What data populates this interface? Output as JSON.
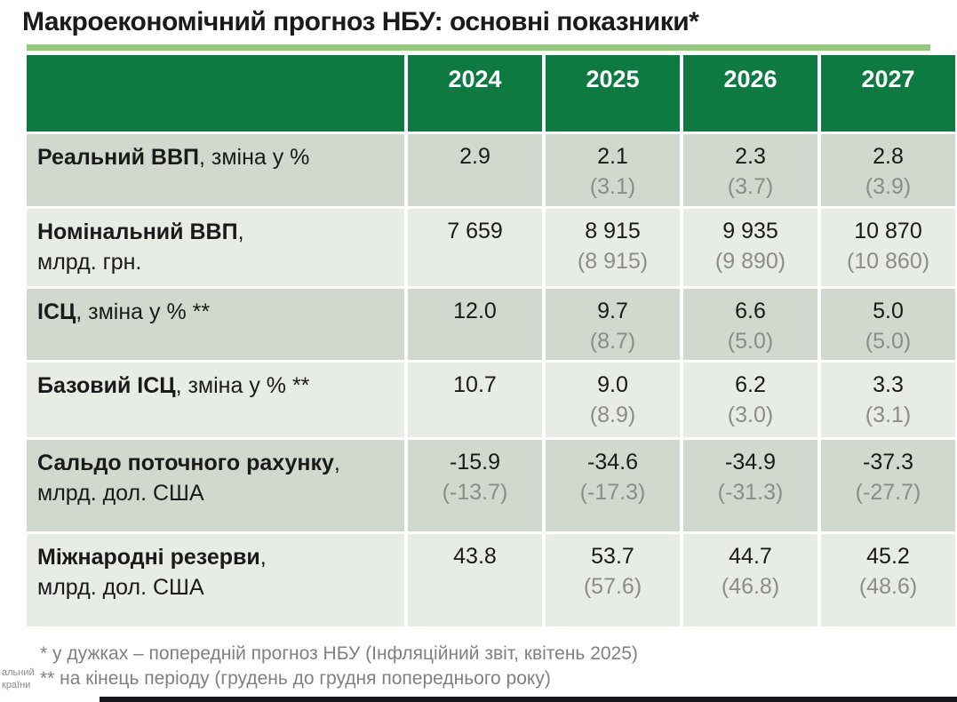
{
  "title": "Макроекономічний прогноз НБУ: основні показники*",
  "colors": {
    "header_green": "#0e7a41",
    "accent_underline_green": "#92c97e",
    "row_shade_dark": "#d1d9ce",
    "row_shade_light": "#e7ece4",
    "prev_value_gray": "#8c8c8c",
    "footnote_gray": "#808080"
  },
  "table": {
    "years": [
      "2024",
      "2025",
      "2026",
      "2027"
    ],
    "rows": [
      {
        "label_bold": "Реальний ВВП",
        "label_rest": ", зміна у %",
        "label_line2": "",
        "values": [
          {
            "v": "2.9",
            "p": ""
          },
          {
            "v": "2.1",
            "p": "(3.1)"
          },
          {
            "v": "2.3",
            "p": "(3.7)"
          },
          {
            "v": "2.8",
            "p": "(3.9)"
          }
        ]
      },
      {
        "label_bold": "Номінальний ВВП",
        "label_rest": ",",
        "label_line2": "млрд. грн.",
        "values": [
          {
            "v": "7 659",
            "p": ""
          },
          {
            "v": "8 915",
            "p": "(8 915)"
          },
          {
            "v": "9 935",
            "p": "(9 890)"
          },
          {
            "v": "10 870",
            "p": "(10 860)"
          }
        ]
      },
      {
        "label_bold": "ІСЦ",
        "label_rest": ", зміна у % **",
        "label_line2": "",
        "values": [
          {
            "v": "12.0",
            "p": ""
          },
          {
            "v": "9.7",
            "p": "(8.7)"
          },
          {
            "v": "6.6",
            "p": "(5.0)"
          },
          {
            "v": "5.0",
            "p": "(5.0)"
          }
        ]
      },
      {
        "label_bold": "Базовий ІСЦ",
        "label_rest": ", зміна у % **",
        "label_line2": "",
        "values": [
          {
            "v": "10.7",
            "p": ""
          },
          {
            "v": "9.0",
            "p": "(8.9)"
          },
          {
            "v": "6.2",
            "p": "(3.0)"
          },
          {
            "v": "3.3",
            "p": "(3.1)"
          }
        ]
      },
      {
        "label_bold": "Сальдо поточного рахунку",
        "label_rest": ",",
        "label_line2": "млрд. дол. США",
        "values": [
          {
            "v": "-15.9",
            "p": "(-13.7)"
          },
          {
            "v": "-34.6",
            "p": "(-17.3)"
          },
          {
            "v": "-34.9",
            "p": "(-31.3)"
          },
          {
            "v": "-37.3",
            "p": "(-27.7)"
          }
        ]
      },
      {
        "label_bold": "Міжнародні резерви",
        "label_rest": ",",
        "label_line2": "млрд. дол. США",
        "values": [
          {
            "v": "43.8",
            "p": ""
          },
          {
            "v": "53.7",
            "p": "(57.6)"
          },
          {
            "v": "44.7",
            "p": "(46.8)"
          },
          {
            "v": "45.2",
            "p": "(48.6)"
          }
        ]
      }
    ]
  },
  "footnotes": [
    "* у дужках – попередній прогноз НБУ (Інфляційний звіт, квітень 2025)",
    "** на кінець періоду (грудень до грудня попереднього року)"
  ],
  "logo_fragment": [
    "альний",
    "країни"
  ]
}
